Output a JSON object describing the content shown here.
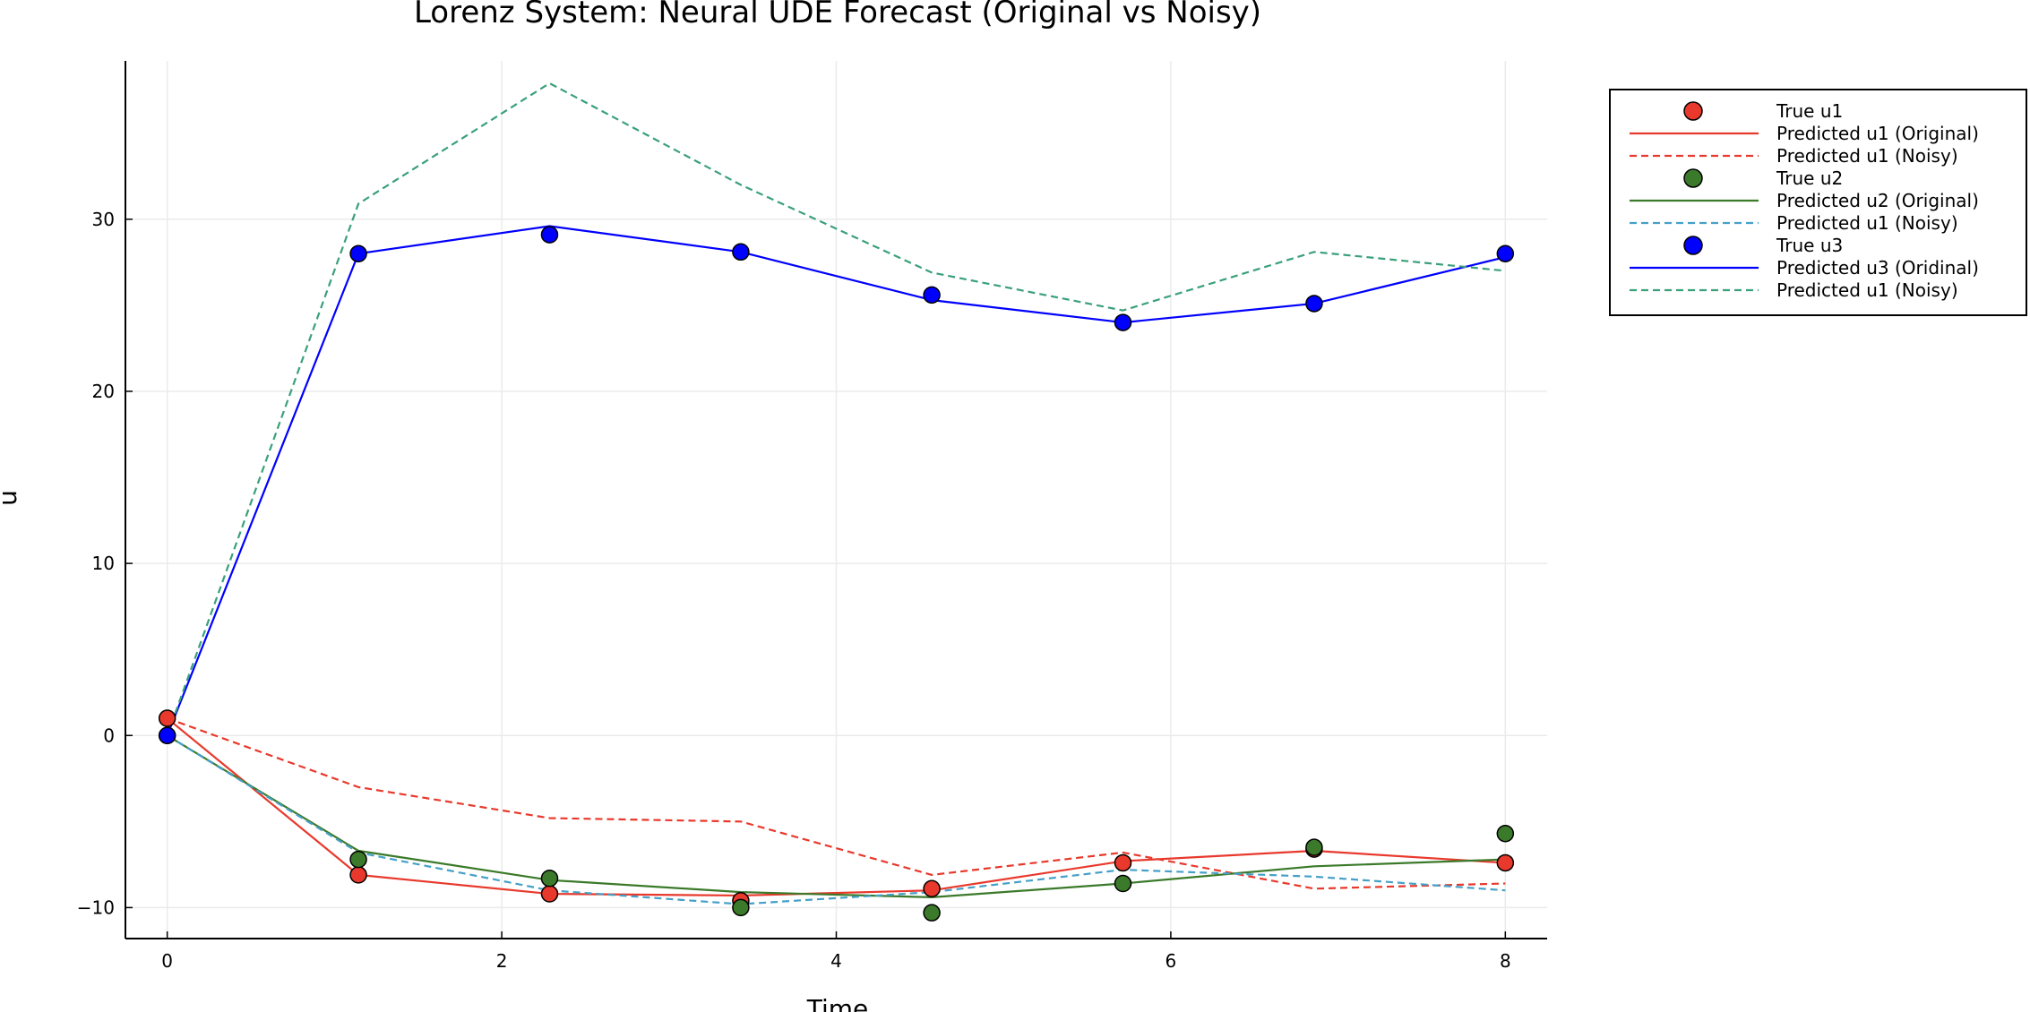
{
  "chart_data": {
    "type": "line",
    "title": "Lorenz System: Neural UDE Forecast (Original vs Noisy)",
    "xlabel": "Time",
    "ylabel": "u",
    "xlim": [
      -0.25,
      8.25
    ],
    "ylim": [
      -11.8,
      39.2
    ],
    "grid": true,
    "legend_position": "outside top-right",
    "x_ticks": [
      0,
      2,
      4,
      6,
      8
    ],
    "y_ticks": [
      -10,
      0,
      10,
      20,
      30
    ],
    "x_tick_labels": [
      "0",
      "2",
      "4",
      "6",
      "8"
    ],
    "y_tick_labels": [
      "−10",
      "0",
      "10",
      "20",
      "30"
    ],
    "x": [
      0,
      1.143,
      2.286,
      3.429,
      4.571,
      5.714,
      6.857,
      8.0
    ],
    "series": [
      {
        "name": "True u1",
        "kind": "scatter",
        "color": "#e8392c",
        "values": [
          1.0,
          -8.1,
          -9.2,
          -9.6,
          -8.9,
          -7.4,
          -6.6,
          -7.4
        ]
      },
      {
        "name": "Predicted u1 (Original)",
        "kind": "line",
        "dash": "solid",
        "color": "#e8392c",
        "values": [
          1.0,
          -8.1,
          -9.2,
          -9.3,
          -9.0,
          -7.3,
          -6.7,
          -7.4
        ]
      },
      {
        "name": "Predicted u1 (Noisy)",
        "kind": "line",
        "dash": "dashed",
        "color": "#e8392c",
        "values": [
          1.0,
          -3.0,
          -4.8,
          -5.0,
          -8.1,
          -6.8,
          -8.9,
          -8.6
        ]
      },
      {
        "name": "True u2",
        "kind": "scatter",
        "color": "#3b7a2a",
        "values": [
          0.0,
          -7.2,
          -8.3,
          -10.0,
          -10.3,
          -8.6,
          -6.5,
          -5.7
        ]
      },
      {
        "name": "Predicted u2 (Original)",
        "kind": "line",
        "dash": "solid",
        "color": "#3b7a2a",
        "values": [
          0.0,
          -6.7,
          -8.4,
          -9.1,
          -9.4,
          -8.6,
          -7.6,
          -7.2
        ]
      },
      {
        "name": "Predicted u1 (Noisy)",
        "kind": "line",
        "dash": "dashed",
        "color": "#45a0c8",
        "values": [
          0.0,
          -6.8,
          -9.0,
          -9.8,
          -9.1,
          -7.8,
          -8.2,
          -9.0
        ]
      },
      {
        "name": "True u3",
        "kind": "scatter",
        "color": "#0000ff",
        "values": [
          0.0,
          28.0,
          29.1,
          28.1,
          25.6,
          24.0,
          25.1,
          28.0
        ]
      },
      {
        "name": "Predicted u3 (Oridinal)",
        "kind": "line",
        "dash": "solid",
        "color": "#0000ff",
        "values": [
          0.0,
          28.0,
          29.6,
          28.1,
          25.3,
          24.0,
          25.1,
          27.8
        ]
      },
      {
        "name": "Predicted u1 (Noisy)",
        "kind": "line",
        "dash": "dashed",
        "color": "#3aa07a",
        "values": [
          0.0,
          30.9,
          37.9,
          32.0,
          26.9,
          24.7,
          28.1,
          27.0
        ]
      }
    ]
  }
}
